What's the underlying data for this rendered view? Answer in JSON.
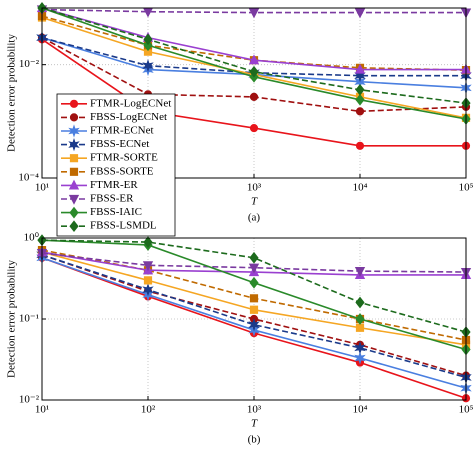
{
  "chart_data": [
    {
      "type": "line",
      "caption": "(a)",
      "x_label": "T",
      "y_label": "Detection error probability",
      "log_x": true,
      "log_y": true,
      "grid": true,
      "legend": "lower left",
      "x": [
        10,
        100,
        1000,
        10000,
        100000
      ],
      "xlim": [
        10,
        100000
      ],
      "xticks": [
        {
          "value": 10,
          "label": "10¹"
        },
        {
          "value": 100,
          "label": "10²"
        },
        {
          "value": 1000,
          "label": "10³"
        },
        {
          "value": 10000,
          "label": "10⁴"
        },
        {
          "value": 100000,
          "label": "10⁵"
        }
      ],
      "ylim": [
        0.0001,
        0.1
      ],
      "yticks": [
        {
          "value": 0.0001,
          "label": "10⁻⁴"
        },
        {
          "value": 0.01,
          "label": "10⁻²"
        }
      ],
      "series": [
        {
          "name": "FTMR-LogECNet",
          "color": "#e8141b",
          "dash": false,
          "marker": "circle",
          "values": [
            0.028,
            0.0015,
            0.00076,
            0.00037,
            0.00037
          ]
        },
        {
          "name": "FBSS-LogECNet",
          "color": "#a01010",
          "dash": true,
          "marker": "circle",
          "values": [
            0.03,
            0.003,
            0.0027,
            0.0015,
            0.0018
          ]
        },
        {
          "name": "FTMR-ECNet",
          "color": "#4a7fe0",
          "dash": false,
          "marker": "star",
          "values": [
            0.03,
            0.0082,
            0.0067,
            0.005,
            0.0039
          ]
        },
        {
          "name": "FBSS-ECNet",
          "color": "#1a3a8a",
          "dash": true,
          "marker": "star",
          "values": [
            0.03,
            0.0096,
            0.0072,
            0.0064,
            0.0064
          ]
        },
        {
          "name": "FTMR-SORTE",
          "color": "#f5a623",
          "dash": false,
          "marker": "square",
          "values": [
            0.068,
            0.017,
            0.0067,
            0.0027,
            0.00115
          ]
        },
        {
          "name": "FBSS-SORTE",
          "color": "#c06a00",
          "dash": true,
          "marker": "square",
          "values": [
            0.072,
            0.022,
            0.012,
            0.0088,
            0.008
          ]
        },
        {
          "name": "FTMR-ER",
          "color": "#9a40d0",
          "dash": false,
          "marker": "triangle-up",
          "values": [
            0.1,
            0.03,
            0.012,
            0.0082,
            0.0082
          ]
        },
        {
          "name": "FBSS-ER",
          "color": "#7a3aa0",
          "dash": true,
          "marker": "triangle-down",
          "values": [
            0.094,
            0.086,
            0.083,
            0.083,
            0.083
          ]
        },
        {
          "name": "FBSS-IAIC",
          "color": "#2a8a2a",
          "dash": false,
          "marker": "diamond",
          "values": [
            0.1,
            0.022,
            0.0061,
            0.0024,
            0.0011
          ]
        },
        {
          "name": "FBSS-LSMDL",
          "color": "#1d6b1d",
          "dash": true,
          "marker": "diamond",
          "values": [
            0.1,
            0.028,
            0.0075,
            0.0036,
            0.0021
          ]
        }
      ]
    },
    {
      "type": "line",
      "caption": "(b)",
      "x_label": "T",
      "y_label": "Detection error probability",
      "log_x": true,
      "log_y": true,
      "grid": true,
      "x": [
        10,
        100,
        1000,
        10000,
        100000
      ],
      "xlim": [
        10,
        100000
      ],
      "xticks": [
        {
          "value": 10,
          "label": "10¹"
        },
        {
          "value": 100,
          "label": "10²"
        },
        {
          "value": 1000,
          "label": "10³"
        },
        {
          "value": 10000,
          "label": "10⁴"
        },
        {
          "value": 100000,
          "label": "10⁵"
        }
      ],
      "ylim": [
        0.01,
        1
      ],
      "yticks": [
        {
          "value": 0.01,
          "label": "10⁻²"
        },
        {
          "value": 0.1,
          "label": "10⁻¹"
        },
        {
          "value": 1,
          "label": "10⁰"
        }
      ],
      "series": [
        {
          "name": "FTMR-LogECNet",
          "color": "#e8141b",
          "dash": false,
          "marker": "circle",
          "values": [
            0.57,
            0.19,
            0.067,
            0.029,
            0.0105
          ]
        },
        {
          "name": "FBSS-LogECNet",
          "color": "#a01010",
          "dash": true,
          "marker": "circle",
          "values": [
            0.62,
            0.22,
            0.1,
            0.048,
            0.02
          ]
        },
        {
          "name": "FTMR-ECNet",
          "color": "#4a7fe0",
          "dash": false,
          "marker": "star",
          "values": [
            0.57,
            0.2,
            0.073,
            0.033,
            0.014
          ]
        },
        {
          "name": "FBSS-ECNet",
          "color": "#1a3a8a",
          "dash": true,
          "marker": "star",
          "values": [
            0.62,
            0.23,
            0.085,
            0.044,
            0.019
          ]
        },
        {
          "name": "FTMR-SORTE",
          "color": "#f5a623",
          "dash": false,
          "marker": "square",
          "values": [
            0.67,
            0.3,
            0.13,
            0.078,
            0.048
          ]
        },
        {
          "name": "FBSS-SORTE",
          "color": "#c06a00",
          "dash": true,
          "marker": "square",
          "values": [
            0.71,
            0.4,
            0.18,
            0.1,
            0.055
          ]
        },
        {
          "name": "FTMR-ER",
          "color": "#9a40d0",
          "dash": false,
          "marker": "triangle-up",
          "values": [
            0.67,
            0.4,
            0.38,
            0.35,
            0.35
          ]
        },
        {
          "name": "FBSS-ER",
          "color": "#7a3aa0",
          "dash": true,
          "marker": "triangle-down",
          "values": [
            0.65,
            0.46,
            0.43,
            0.39,
            0.38
          ]
        },
        {
          "name": "FBSS-IAIC",
          "color": "#2a8a2a",
          "dash": false,
          "marker": "diamond",
          "values": [
            0.94,
            0.82,
            0.28,
            0.1,
            0.042
          ]
        },
        {
          "name": "FBSS-LSMDL",
          "color": "#1d6b1d",
          "dash": true,
          "marker": "diamond",
          "values": [
            0.94,
            0.89,
            0.57,
            0.16,
            0.069
          ]
        }
      ]
    }
  ]
}
